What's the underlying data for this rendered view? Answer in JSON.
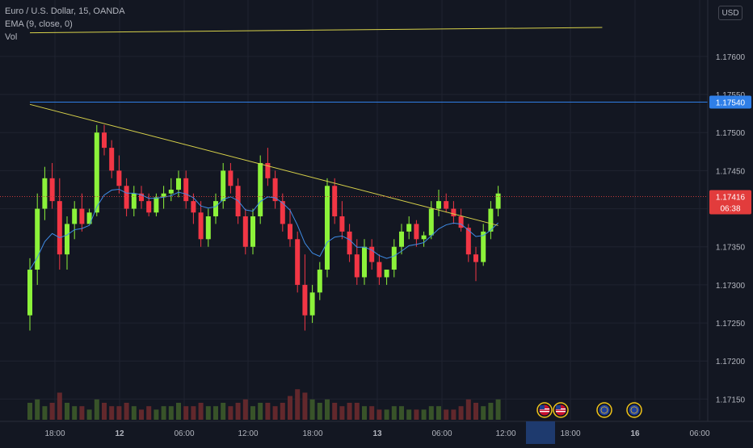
{
  "header": {
    "symbol_title": "Euro / U.S. Dollar, 15, OANDA",
    "indicator_ema": "EMA (9, close, 0)",
    "indicator_vol": "Vol",
    "currency_button": "USD"
  },
  "colors": {
    "background": "#131722",
    "grid": "#1f2330",
    "up_candle": "#8cf23a",
    "down_candle": "#f23645",
    "ema": "#3f8ce6",
    "trendline": "#d8d24a",
    "hline": "#2f7fe8",
    "price_line": "#c83a3a"
  },
  "price_axis": {
    "ticks": [
      "1.17600",
      "1.17550",
      "1.17500",
      "1.17450",
      "1.17350",
      "1.17300",
      "1.17250",
      "1.17200",
      "1.17150"
    ],
    "hline_label": "1.17540",
    "last_price_label": "1.17416",
    "countdown": "06:38"
  },
  "time_axis": {
    "labels": [
      "18:00",
      "12",
      "06:00",
      "12:00",
      "18:00",
      "13",
      "06:00",
      "12:00",
      "18:00",
      "16",
      "06:00"
    ]
  },
  "events": [
    {
      "icon": "us-flag-icon"
    },
    {
      "icon": "us-flag-icon"
    },
    {
      "icon": "eu-flag-icon"
    },
    {
      "icon": "eu-flag-icon"
    }
  ],
  "chart_data": {
    "type": "candlestick",
    "title": "Euro / U.S. Dollar, 15, OANDA",
    "ylim": [
      1.17125,
      1.17655
    ],
    "hline": 1.1754,
    "last_price": 1.17416,
    "trendline_upper": [
      [
        0,
        1.17631
      ],
      [
        77,
        1.17638
      ]
    ],
    "trendline_lower": [
      [
        0,
        1.17537
      ],
      [
        63,
        1.17378
      ]
    ],
    "ohlc": [
      [
        1.1726,
        1.17335,
        1.1724,
        1.1732
      ],
      [
        1.1732,
        1.1742,
        1.173,
        1.174
      ],
      [
        1.174,
        1.17455,
        1.17385,
        1.1744
      ],
      [
        1.1744,
        1.1746,
        1.174,
        1.1741
      ],
      [
        1.1741,
        1.1744,
        1.1732,
        1.1734
      ],
      [
        1.1734,
        1.1739,
        1.1732,
        1.1738
      ],
      [
        1.1738,
        1.1741,
        1.1736,
        1.174
      ],
      [
        1.174,
        1.1742,
        1.1737,
        1.1738
      ],
      [
        1.1738,
        1.174,
        1.1738,
        1.17395
      ],
      [
        1.17395,
        1.1751,
        1.1739,
        1.175
      ],
      [
        1.175,
        1.1751,
        1.1747,
        1.1748
      ],
      [
        1.1748,
        1.1749,
        1.1744,
        1.1745
      ],
      [
        1.1745,
        1.1747,
        1.1742,
        1.1743
      ],
      [
        1.1743,
        1.1744,
        1.1739,
        1.174
      ],
      [
        1.174,
        1.1743,
        1.1739,
        1.1742
      ],
      [
        1.1742,
        1.1743,
        1.174,
        1.1741
      ],
      [
        1.1741,
        1.1742,
        1.1739,
        1.17395
      ],
      [
        1.17395,
        1.1742,
        1.1739,
        1.17415
      ],
      [
        1.17415,
        1.1743,
        1.174,
        1.1742
      ],
      [
        1.1742,
        1.1744,
        1.1741,
        1.17425
      ],
      [
        1.17425,
        1.1745,
        1.17415,
        1.1744
      ],
      [
        1.1744,
        1.1745,
        1.174,
        1.1741
      ],
      [
        1.1741,
        1.1742,
        1.1738,
        1.17395
      ],
      [
        1.17395,
        1.1741,
        1.1735,
        1.1736
      ],
      [
        1.1736,
        1.174,
        1.1735,
        1.1739
      ],
      [
        1.1739,
        1.1742,
        1.1738,
        1.1741
      ],
      [
        1.1741,
        1.1746,
        1.174,
        1.1745
      ],
      [
        1.1745,
        1.1746,
        1.1742,
        1.1743
      ],
      [
        1.1743,
        1.1744,
        1.1738,
        1.1739
      ],
      [
        1.1739,
        1.174,
        1.1734,
        1.1735
      ],
      [
        1.1735,
        1.174,
        1.1734,
        1.1739
      ],
      [
        1.1739,
        1.1747,
        1.1738,
        1.1746
      ],
      [
        1.1746,
        1.1748,
        1.1743,
        1.1744
      ],
      [
        1.1744,
        1.1745,
        1.174,
        1.1741
      ],
      [
        1.1741,
        1.1742,
        1.1737,
        1.1738
      ],
      [
        1.1738,
        1.174,
        1.1735,
        1.1736
      ],
      [
        1.1736,
        1.1737,
        1.1729,
        1.173
      ],
      [
        1.173,
        1.1734,
        1.1724,
        1.1726
      ],
      [
        1.1726,
        1.173,
        1.1725,
        1.1729
      ],
      [
        1.1729,
        1.1733,
        1.1728,
        1.1732
      ],
      [
        1.1732,
        1.1744,
        1.1731,
        1.1743
      ],
      [
        1.1743,
        1.1744,
        1.1738,
        1.1739
      ],
      [
        1.1739,
        1.1741,
        1.1736,
        1.1737
      ],
      [
        1.1737,
        1.1738,
        1.1733,
        1.1734
      ],
      [
        1.1734,
        1.1736,
        1.173,
        1.1731
      ],
      [
        1.1731,
        1.1736,
        1.173,
        1.1735
      ],
      [
        1.1735,
        1.1736,
        1.1732,
        1.1733
      ],
      [
        1.1733,
        1.1734,
        1.173,
        1.1731
      ],
      [
        1.1731,
        1.1732,
        1.173,
        1.1732
      ],
      [
        1.1732,
        1.1736,
        1.1731,
        1.1735
      ],
      [
        1.1735,
        1.1738,
        1.1734,
        1.1737
      ],
      [
        1.1737,
        1.1739,
        1.1736,
        1.1738
      ],
      [
        1.1738,
        1.17385,
        1.1735,
        1.1736
      ],
      [
        1.1736,
        1.1737,
        1.1735,
        1.17365
      ],
      [
        1.17365,
        1.1741,
        1.1736,
        1.174
      ],
      [
        1.174,
        1.17425,
        1.1739,
        1.1741
      ],
      [
        1.1741,
        1.1742,
        1.17395,
        1.174
      ],
      [
        1.174,
        1.1741,
        1.1738,
        1.1739
      ],
      [
        1.1739,
        1.174,
        1.1737,
        1.17375
      ],
      [
        1.17375,
        1.1738,
        1.1733,
        1.1734
      ],
      [
        1.1734,
        1.1735,
        1.17305,
        1.1733
      ],
      [
        1.1733,
        1.1738,
        1.17325,
        1.1737
      ],
      [
        1.1737,
        1.1741,
        1.1736,
        1.174
      ],
      [
        1.174,
        1.1743,
        1.1739,
        1.1742
      ]
    ],
    "volume": [
      5,
      6,
      4,
      5,
      8,
      5,
      4,
      4,
      3,
      6,
      5,
      4,
      4,
      5,
      4,
      3,
      4,
      3,
      4,
      4,
      5,
      4,
      4,
      5,
      4,
      4,
      5,
      4,
      5,
      6,
      4,
      5,
      5,
      4,
      5,
      7,
      9,
      8,
      6,
      5,
      6,
      5,
      4,
      5,
      5,
      4,
      4,
      3,
      3,
      4,
      4,
      3,
      3,
      3,
      4,
      4,
      3,
      3,
      4,
      6,
      5,
      4,
      5,
      6
    ]
  }
}
